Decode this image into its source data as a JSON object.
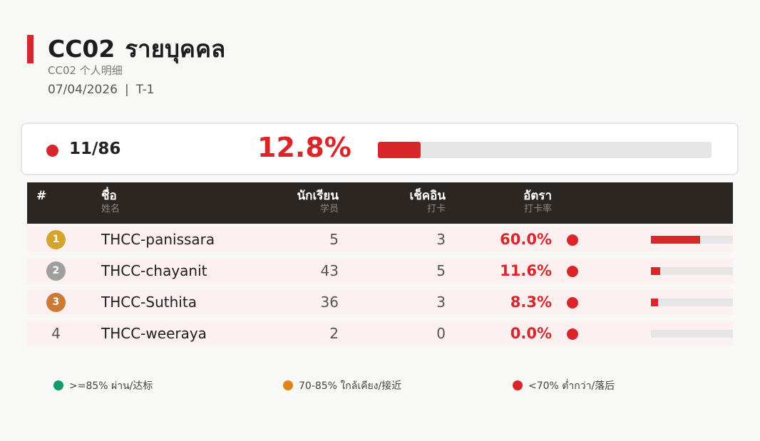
{
  "header": {
    "code": "CC02",
    "title": "รายบุคคล",
    "subtitle": "CC02  个人明细",
    "date": "07/04/2026",
    "separator": "|",
    "period": "T-1"
  },
  "summary": {
    "count": "11/86",
    "percent": "12.8%",
    "fraction": 0.128
  },
  "table": {
    "columns": [
      {
        "main": "#",
        "sub": ""
      },
      {
        "main": "ชื่อ",
        "sub": "姓名"
      },
      {
        "main": "นักเรียน",
        "sub": "学员"
      },
      {
        "main": "เช็คอิน",
        "sub": "打卡"
      },
      {
        "main": "อัตรา",
        "sub": "打卡率"
      }
    ],
    "rows": [
      {
        "rank": "1",
        "name": "THCC-panissara",
        "students": "5",
        "checkin": "3",
        "rate": "60.0%",
        "fraction": 0.6
      },
      {
        "rank": "2",
        "name": "THCC-chayanit",
        "students": "43",
        "checkin": "5",
        "rate": "11.6%",
        "fraction": 0.116
      },
      {
        "rank": "3",
        "name": "THCC-Suthita",
        "students": "36",
        "checkin": "3",
        "rate": "8.3%",
        "fraction": 0.083
      },
      {
        "rank": "4",
        "name": "THCC-weeraya",
        "students": "2",
        "checkin": "0",
        "rate": "0.0%",
        "fraction": 0.0
      }
    ]
  },
  "legend": [
    {
      "label": ">=85% ผ่าน/达标",
      "color": "#0f9d6e"
    },
    {
      "label": "70-85% ใกล้เคียง/接近",
      "color": "#e0851a"
    },
    {
      "label": "<70% ต่ำกว่า/落后",
      "color": "#d9262b"
    }
  ],
  "colors": {
    "accent": "#d9262b",
    "gold": "#d4a52c",
    "silver": "#a09f9f",
    "bronze": "#cd7a35",
    "header_bg": "#2b2622"
  }
}
